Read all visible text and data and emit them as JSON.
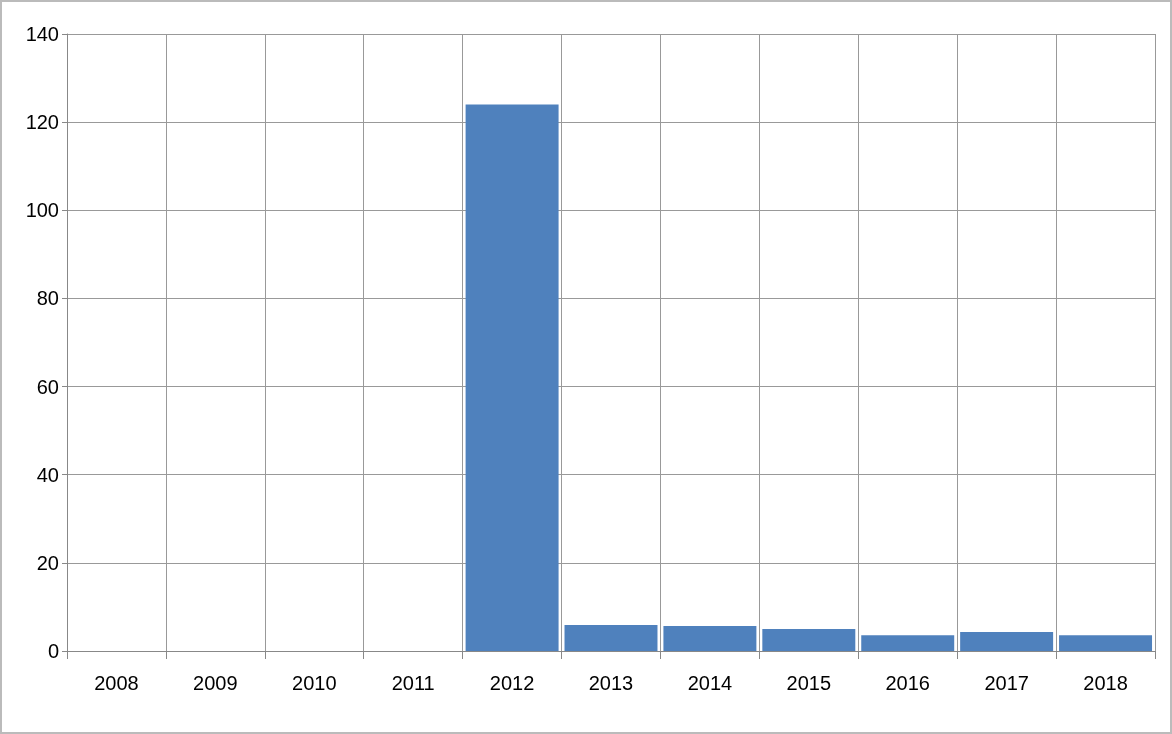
{
  "chart_data": {
    "type": "bar",
    "categories": [
      "2008",
      "2009",
      "2010",
      "2011",
      "2012",
      "2013",
      "2014",
      "2015",
      "2016",
      "2017",
      "2018"
    ],
    "values": [
      null,
      null,
      null,
      null,
      124,
      5.9,
      5.7,
      5.0,
      3.6,
      4.3,
      3.6
    ],
    "color": "#4f81bd",
    "ylim": [
      0,
      140
    ],
    "yticks": [
      0,
      20,
      40,
      60,
      80,
      100,
      120,
      140
    ],
    "grid": true
  }
}
